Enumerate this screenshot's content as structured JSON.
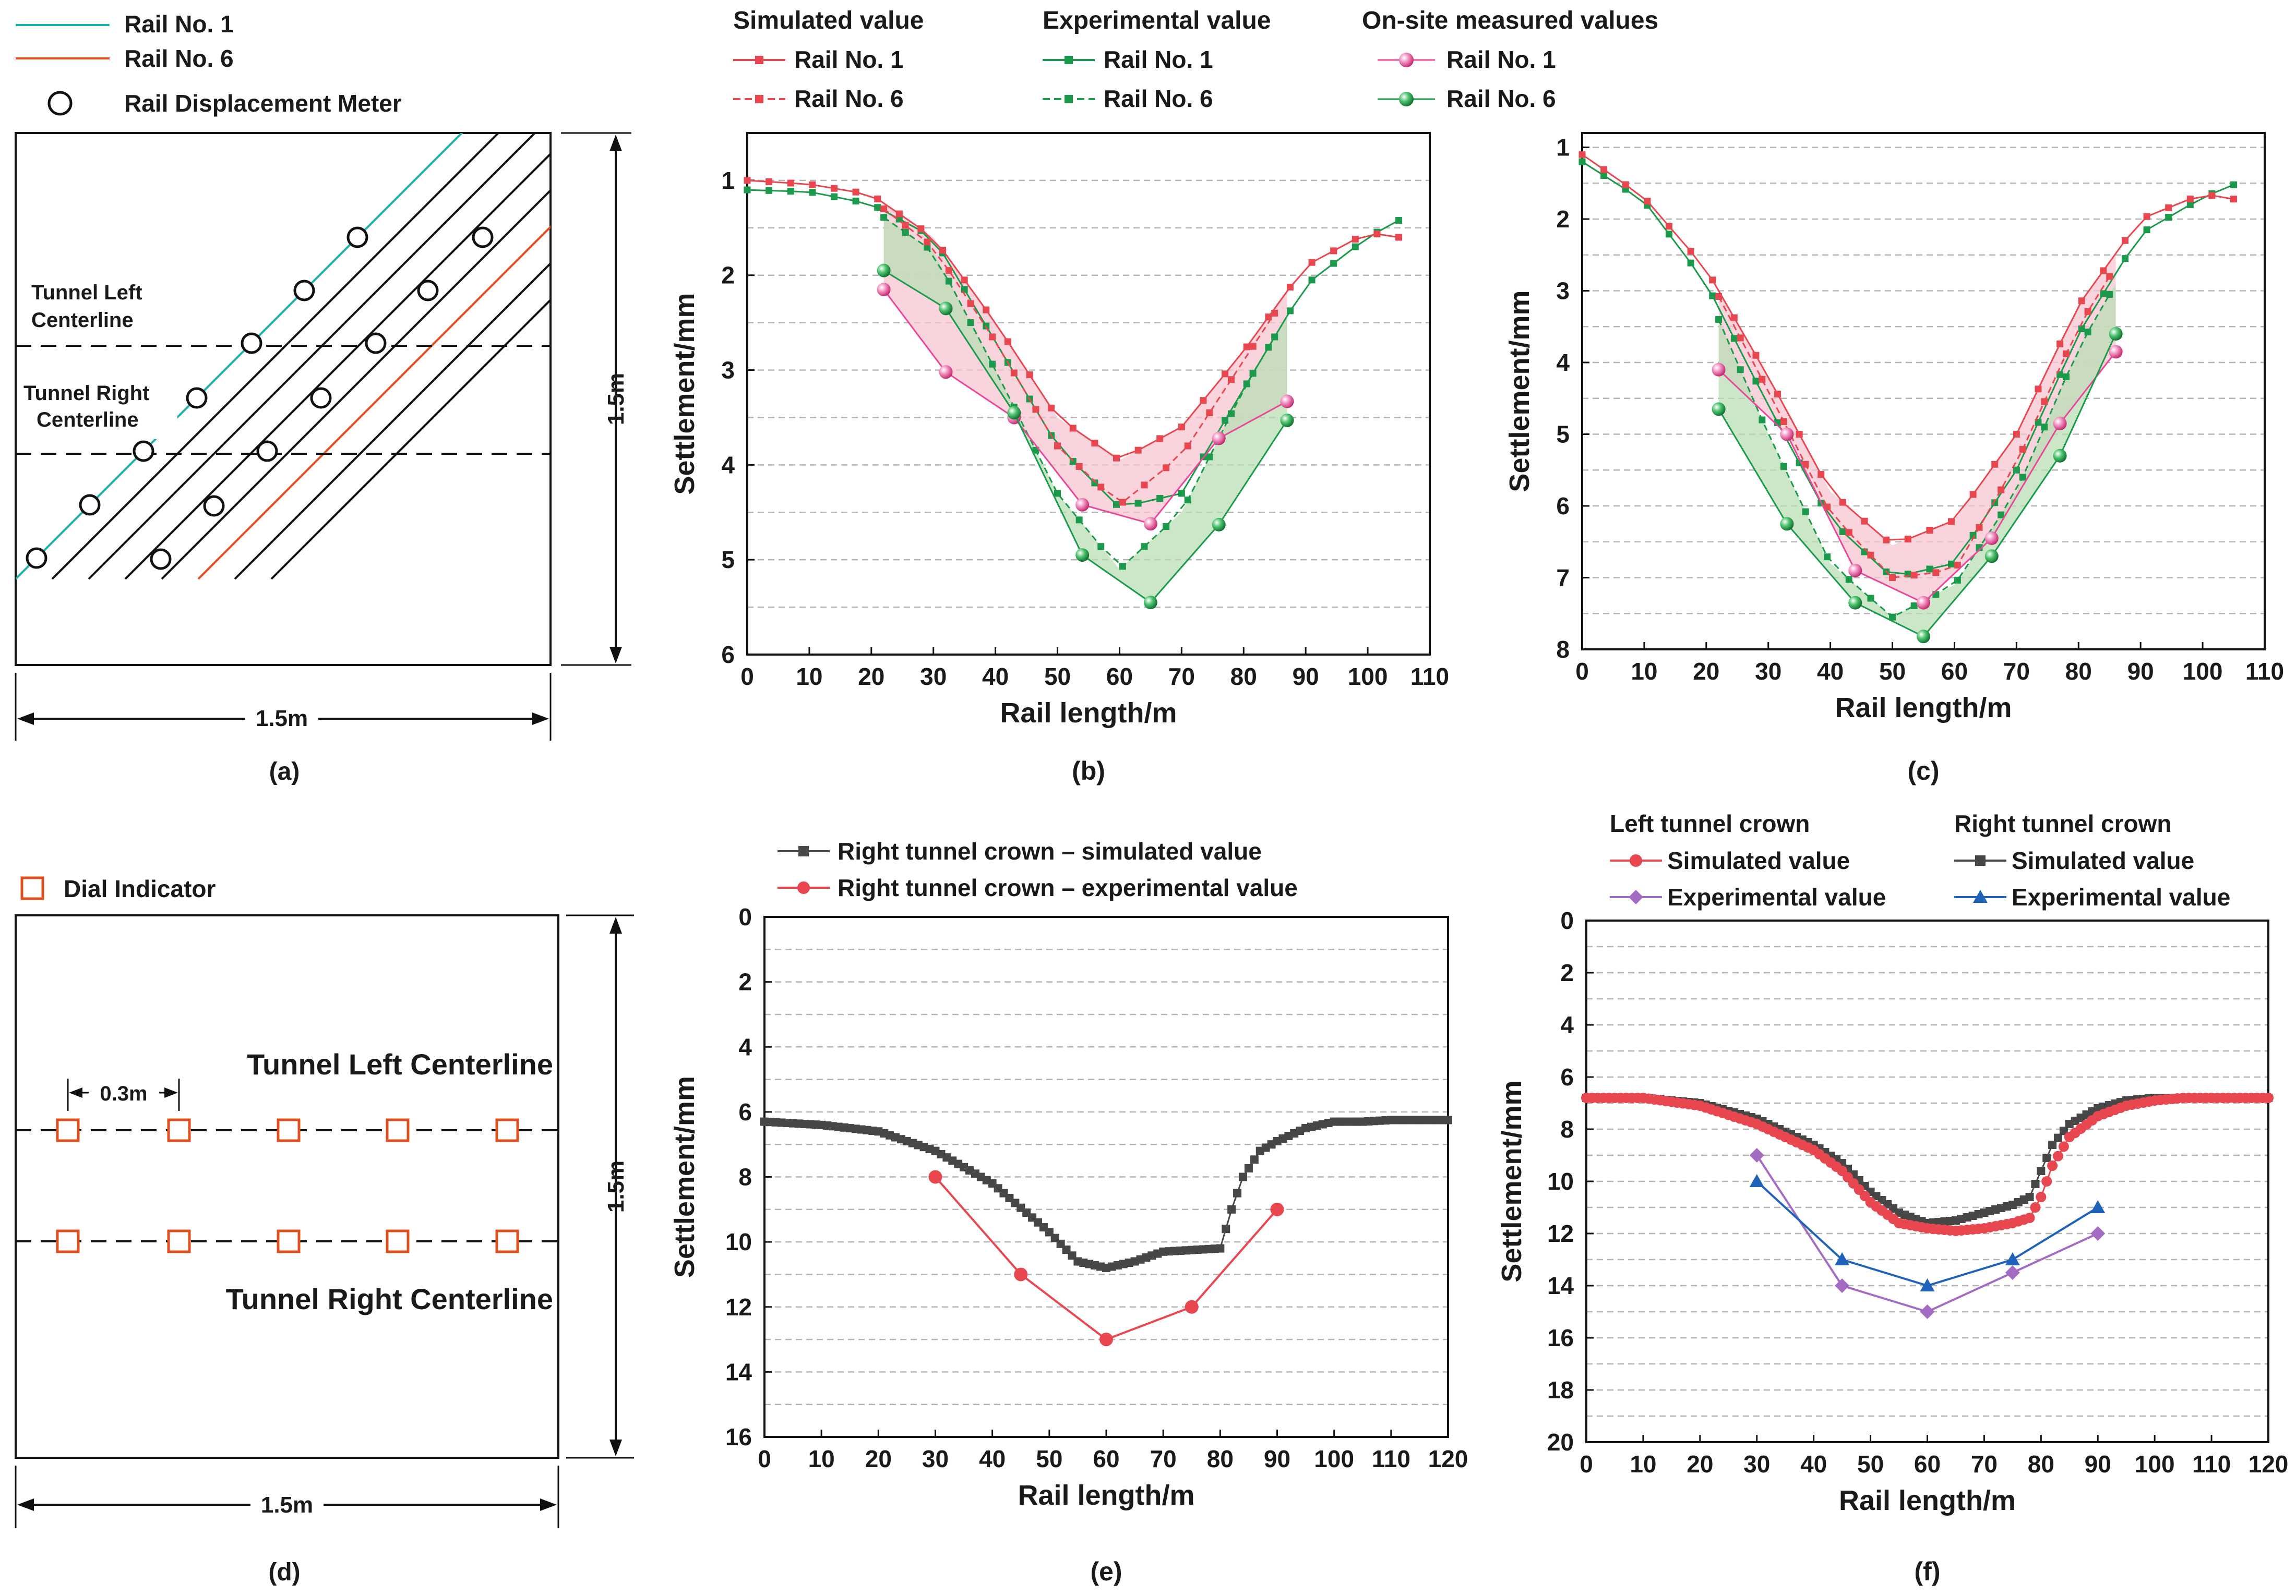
{
  "colors": {
    "sim": "#e8474f",
    "exp": "#1a9a4a",
    "onsite1": "#e8479a",
    "onsite6": "#1a9a4a",
    "rail1": "#20b2aa",
    "rail6": "#e0501e",
    "pinkFill": "#f7c6d2",
    "greenFill": "#b9dfb4",
    "dark": "#474747",
    "purple": "#a36bc2",
    "blue": "#1f63b8",
    "indicator": "#e0501e"
  },
  "panel_a": {
    "legend": [
      "Rail No. 1",
      "Rail No. 6",
      "Rail Displacement Meter"
    ],
    "left_label": [
      "Tunnel Left",
      "Centerline"
    ],
    "right_label": [
      "Tunnel Right",
      "Centerline"
    ],
    "dim_v": "1.5m",
    "dim_h": "1.5m",
    "caption": "(a)"
  },
  "panel_d": {
    "legend": "Dial Indicator",
    "spacing": "0.3m",
    "left_label": "Tunnel Left Centerline",
    "right_label": "Tunnel Right Centerline",
    "dim_v": "1.5m",
    "dim_h": "1.5m",
    "caption": "(d)"
  },
  "legend_b": {
    "sim_title": "Simulated value",
    "exp_title": "Experimental value",
    "onsite_title": "On-site measured values",
    "rail1": "Rail No. 1",
    "rail6": "Rail No. 6"
  },
  "legend_e": [
    "Right tunnel crown – simulated value",
    "Right tunnel crown – experimental value"
  ],
  "legend_f": {
    "left_title": "Left tunnel crown",
    "right_title": "Right tunnel crown",
    "sim": "Simulated value",
    "exp": "Experimental value"
  },
  "chart_data": [
    {
      "id": "b",
      "type": "line",
      "caption": "(b)",
      "xlabel": "Rail length/m",
      "ylabel": "Settlement/mm",
      "xlim": [
        0,
        110
      ],
      "ylim": [
        6,
        0.5
      ],
      "inverted_y": true,
      "xticks": [
        0,
        10,
        20,
        30,
        40,
        50,
        60,
        70,
        80,
        90,
        100,
        110
      ],
      "yticks": [
        1,
        2,
        3,
        4,
        5,
        6
      ],
      "series": [
        {
          "name": "Simulated value - Rail No. 1",
          "x": [
            0,
            10,
            20,
            30,
            40,
            50,
            60,
            70,
            80,
            90,
            100,
            107
          ],
          "y": [
            1.0,
            1.04,
            1.15,
            1.6,
            2.5,
            3.5,
            3.95,
            3.6,
            2.8,
            1.9,
            1.55,
            1.62
          ]
        },
        {
          "name": "Simulated value - Rail No. 6",
          "x": [
            0,
            10,
            20,
            30,
            40,
            50,
            60,
            70,
            80,
            90,
            100,
            107
          ],
          "y": [
            1.05,
            1.08,
            1.2,
            1.7,
            2.7,
            3.8,
            4.42,
            3.9,
            2.9,
            1.9,
            1.55,
            1.62
          ]
        },
        {
          "name": "Experimental value - Rail No. 1",
          "x": [
            0,
            10,
            20,
            30,
            40,
            50,
            60,
            70,
            80,
            90,
            100,
            107
          ],
          "y": [
            1.1,
            1.12,
            1.25,
            1.6,
            2.7,
            3.8,
            4.45,
            4.3,
            3.2,
            2.1,
            1.6,
            1.35
          ]
        },
        {
          "name": "Experimental value - Rail No. 6",
          "x": [
            0,
            10,
            20,
            30,
            40,
            50,
            60,
            70,
            80,
            90,
            100,
            107
          ],
          "y": [
            1.1,
            1.15,
            1.3,
            1.75,
            3.0,
            4.3,
            5.1,
            4.5,
            3.2,
            2.1,
            1.6,
            1.35
          ]
        },
        {
          "name": "On-site measured values - Rail No. 1",
          "x": [
            22,
            32,
            43,
            54,
            65,
            76,
            87
          ],
          "y": [
            2.15,
            3.02,
            3.5,
            4.42,
            4.62,
            3.72,
            3.33
          ]
        },
        {
          "name": "On-site measured values - Rail No. 6",
          "x": [
            22,
            32,
            43,
            54,
            65,
            76,
            87
          ],
          "y": [
            1.95,
            2.35,
            3.45,
            4.95,
            5.45,
            4.63,
            3.53
          ]
        }
      ]
    },
    {
      "id": "c",
      "type": "line",
      "caption": "(c)",
      "xlabel": "Rail length/m",
      "ylabel": "Settlement/mm",
      "xlim": [
        0,
        110
      ],
      "ylim": [
        8,
        0.8
      ],
      "inverted_y": true,
      "xticks": [
        0,
        10,
        20,
        30,
        40,
        50,
        60,
        70,
        80,
        90,
        100,
        110
      ],
      "yticks": [
        1,
        2,
        3,
        4,
        5,
        6,
        7,
        8
      ],
      "series": [
        {
          "name": "Simulated value - Rail No. 1",
          "x": [
            0,
            10,
            20,
            30,
            40,
            50,
            60,
            70,
            80,
            90,
            100,
            107
          ],
          "y": [
            1.1,
            1.7,
            2.7,
            4.2,
            5.8,
            6.55,
            6.2,
            5.0,
            3.2,
            2.0,
            1.65,
            1.75
          ]
        },
        {
          "name": "Simulated value - Rail No. 6",
          "x": [
            0,
            10,
            20,
            30,
            40,
            50,
            60,
            70,
            80,
            90,
            100,
            107
          ],
          "y": [
            1.1,
            1.7,
            2.75,
            4.4,
            6.1,
            7.0,
            6.9,
            5.4,
            3.5,
            2.1,
            1.65,
            1.75
          ]
        },
        {
          "name": "Experimental value - Rail No. 1",
          "x": [
            0,
            10,
            20,
            30,
            40,
            50,
            60,
            70,
            80,
            90,
            100,
            107
          ],
          "y": [
            1.2,
            1.75,
            2.9,
            4.6,
            6.2,
            7.0,
            6.8,
            5.5,
            3.6,
            2.2,
            1.7,
            1.45
          ]
        },
        {
          "name": "Experimental value - Rail No. 6",
          "x": [
            0,
            10,
            20,
            30,
            40,
            50,
            60,
            70,
            80,
            90,
            100,
            107
          ],
          "y": [
            1.2,
            1.8,
            3.0,
            5.0,
            6.8,
            7.55,
            7.1,
            5.8,
            3.8,
            2.3,
            1.7,
            1.45
          ]
        },
        {
          "name": "On-site measured values - Rail No. 1",
          "x": [
            22,
            33,
            44,
            55,
            66,
            77,
            86
          ],
          "y": [
            4.1,
            5.0,
            6.9,
            7.35,
            6.45,
            4.85,
            3.85
          ]
        },
        {
          "name": "On-site measured values - Rail No. 6",
          "x": [
            22,
            33,
            44,
            55,
            66,
            77,
            86
          ],
          "y": [
            4.65,
            6.25,
            7.35,
            7.82,
            6.7,
            5.3,
            3.6
          ]
        }
      ]
    },
    {
      "id": "e",
      "type": "line",
      "caption": "(e)",
      "xlabel": "Rail length/m",
      "ylabel": "Settlement/mm",
      "xlim": [
        0,
        120
      ],
      "ylim": [
        16,
        0
      ],
      "inverted_y": true,
      "xticks": [
        0,
        10,
        20,
        30,
        40,
        50,
        60,
        70,
        80,
        90,
        100,
        110,
        120
      ],
      "yticks": [
        0,
        2,
        4,
        6,
        8,
        10,
        12,
        14,
        16
      ],
      "series": [
        {
          "name": "Right tunnel crown – simulated value",
          "x": [
            0,
            10,
            20,
            30,
            40,
            50,
            55,
            60,
            65,
            70,
            75,
            80,
            82,
            84,
            87,
            90,
            95,
            100,
            105,
            110,
            115,
            120
          ],
          "y": [
            6.3,
            6.4,
            6.6,
            7.2,
            8.2,
            9.7,
            10.6,
            10.8,
            10.6,
            10.3,
            10.25,
            10.2,
            9.0,
            8.0,
            7.2,
            6.9,
            6.5,
            6.3,
            6.3,
            6.25,
            6.25,
            6.25
          ]
        },
        {
          "name": "Right tunnel crown – experimental value",
          "x": [
            30,
            45,
            60,
            75,
            90
          ],
          "y": [
            8,
            11,
            13,
            12,
            9
          ]
        }
      ]
    },
    {
      "id": "f",
      "type": "line",
      "caption": "(f)",
      "xlabel": "Rail length/m",
      "ylabel": "Settlement/mm",
      "xlim": [
        0,
        120
      ],
      "ylim": [
        20,
        0
      ],
      "inverted_y": true,
      "xticks": [
        0,
        10,
        20,
        30,
        40,
        50,
        60,
        70,
        80,
        90,
        100,
        110,
        120
      ],
      "yticks": [
        0,
        2,
        4,
        6,
        8,
        10,
        12,
        14,
        16,
        18,
        20
      ],
      "series": [
        {
          "name": "Left tunnel crown - Simulated value",
          "x": [
            0,
            10,
            20,
            30,
            40,
            45,
            50,
            55,
            60,
            65,
            70,
            75,
            78,
            80,
            82,
            85,
            90,
            95,
            100,
            105,
            110,
            115,
            120
          ],
          "y": [
            6.8,
            6.8,
            7.1,
            7.8,
            8.8,
            9.6,
            10.8,
            11.6,
            11.8,
            11.9,
            11.8,
            11.6,
            11.4,
            10.6,
            9.4,
            8.3,
            7.5,
            7.1,
            6.9,
            6.8,
            6.8,
            6.8,
            6.8
          ]
        },
        {
          "name": "Right tunnel crown - Simulated value",
          "x": [
            0,
            10,
            20,
            30,
            40,
            45,
            50,
            55,
            60,
            65,
            70,
            75,
            78,
            80,
            82,
            85,
            90,
            95,
            100,
            105,
            110,
            115,
            120
          ],
          "y": [
            6.8,
            6.8,
            7.0,
            7.6,
            8.6,
            9.3,
            10.4,
            11.2,
            11.6,
            11.5,
            11.2,
            10.9,
            10.6,
            9.6,
            8.6,
            7.8,
            7.2,
            6.9,
            6.8,
            6.8,
            6.8,
            6.8,
            6.8
          ]
        },
        {
          "name": "Left tunnel crown - Experimental value",
          "x": [
            30,
            45,
            60,
            75,
            90
          ],
          "y": [
            9,
            14,
            15,
            13.5,
            12
          ]
        },
        {
          "name": "Right tunnel crown - Experimental value",
          "x": [
            30,
            45,
            60,
            75,
            90
          ],
          "y": [
            10,
            13,
            14,
            13,
            11
          ]
        }
      ]
    }
  ]
}
